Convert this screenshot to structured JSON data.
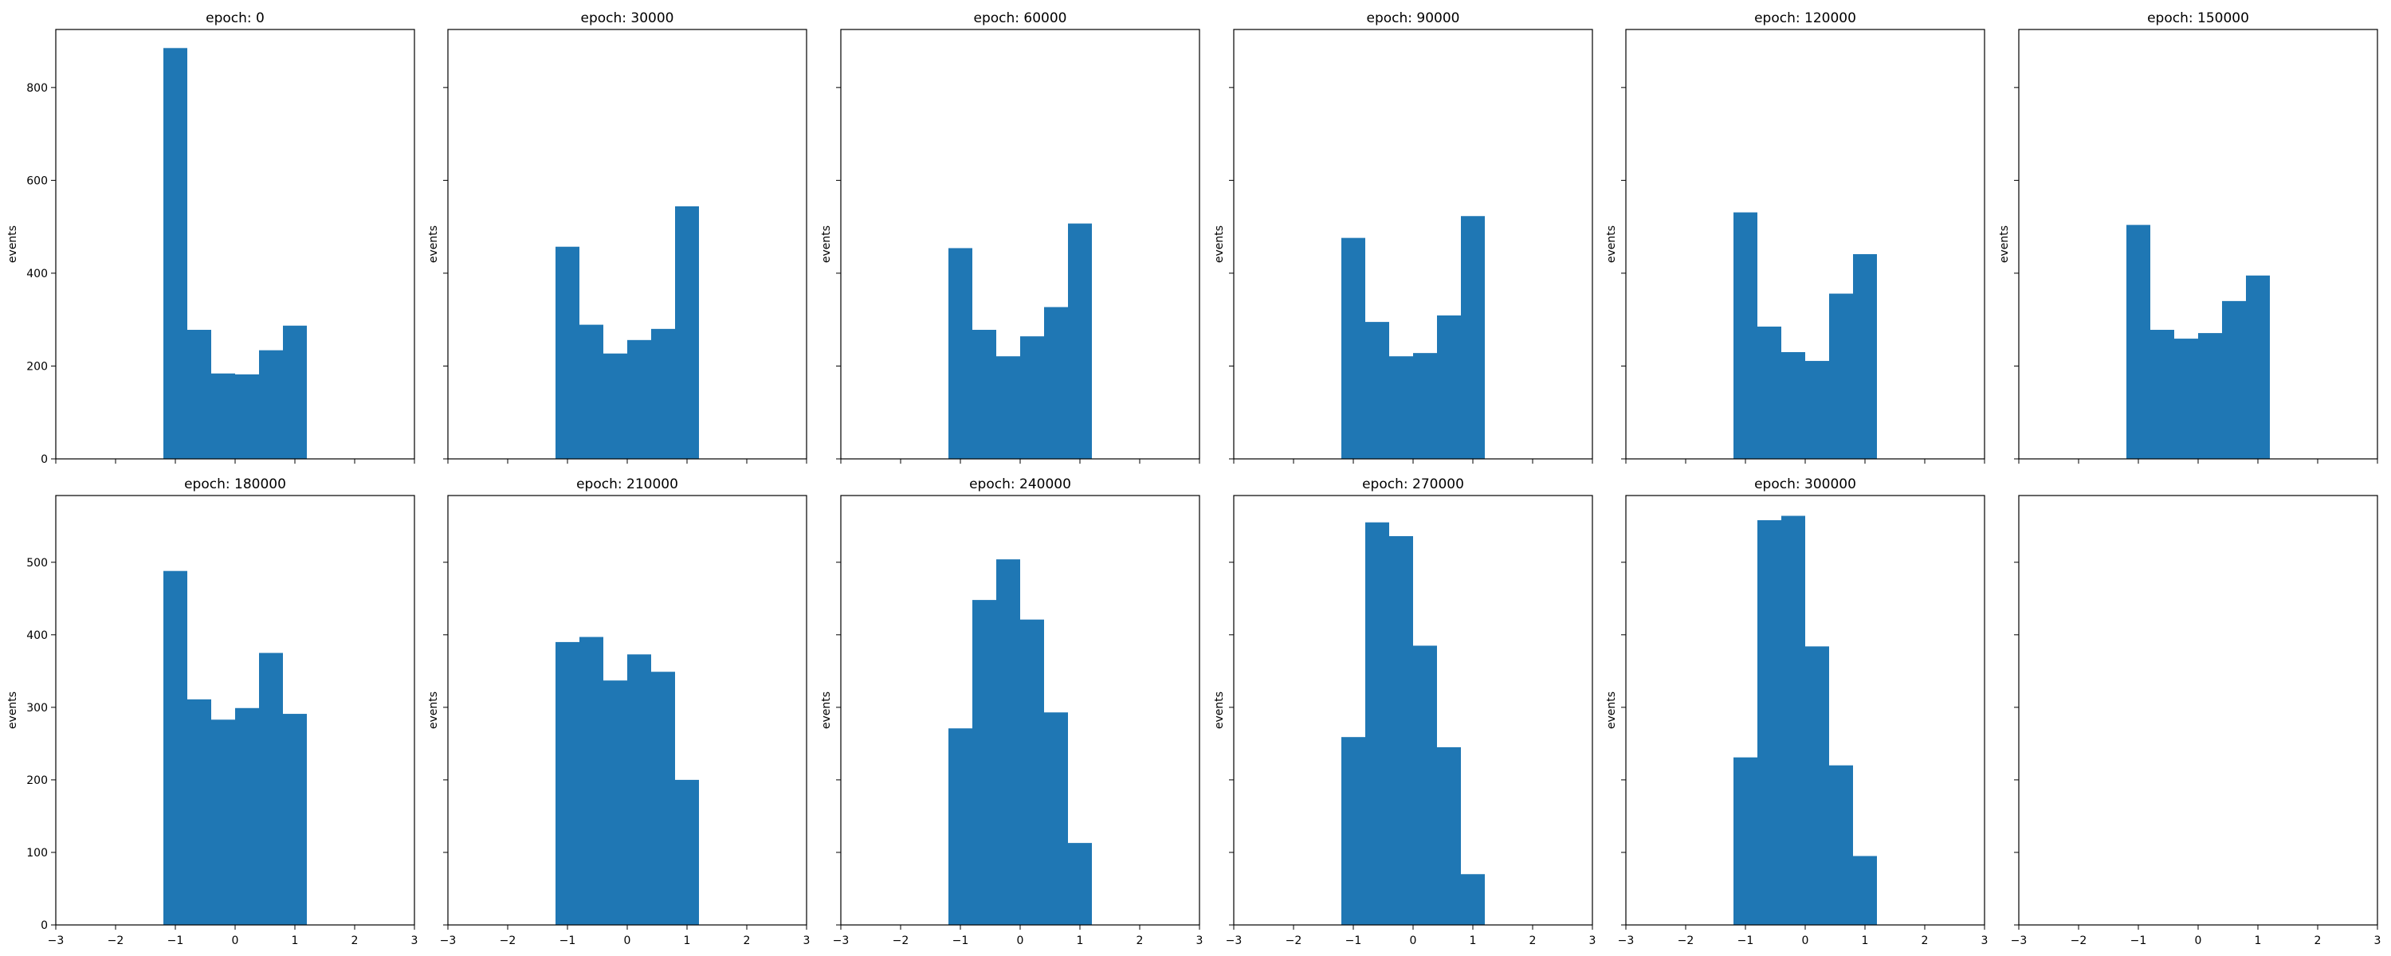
{
  "figure": {
    "background": "#ffffff",
    "bar_color": "#1f77b4"
  },
  "chart_data": [
    {
      "type": "bar",
      "title": "epoch: 0",
      "xlabel": "",
      "ylabel": "events",
      "xlim": [
        -3,
        3
      ],
      "ylim": [
        0,
        925
      ],
      "bin_edges": [
        -1.2,
        -0.8,
        -0.4,
        0.0,
        0.4,
        0.8,
        1.2
      ],
      "values": [
        885,
        278,
        184,
        182,
        234,
        287
      ],
      "xticks": [
        -3,
        -2,
        -1,
        0,
        1,
        2,
        3
      ],
      "yticks": [
        0,
        200,
        400,
        600,
        800
      ]
    },
    {
      "type": "bar",
      "title": "epoch: 30000",
      "xlabel": "",
      "ylabel": "events",
      "xlim": [
        -3,
        3
      ],
      "ylim": [
        0,
        925
      ],
      "bin_edges": [
        -1.2,
        -0.8,
        -0.4,
        0.0,
        0.4,
        0.8,
        1.2
      ],
      "values": [
        457,
        289,
        227,
        256,
        280,
        544
      ],
      "xticks": [
        -3,
        -2,
        -1,
        0,
        1,
        2,
        3
      ],
      "yticks": [
        0,
        200,
        400,
        600,
        800
      ]
    },
    {
      "type": "bar",
      "title": "epoch: 60000",
      "xlabel": "",
      "ylabel": "events",
      "xlim": [
        -3,
        3
      ],
      "ylim": [
        0,
        925
      ],
      "bin_edges": [
        -1.2,
        -0.8,
        -0.4,
        0.0,
        0.4,
        0.8,
        1.2
      ],
      "values": [
        454,
        278,
        221,
        264,
        327,
        507
      ],
      "xticks": [
        -3,
        -2,
        -1,
        0,
        1,
        2,
        3
      ],
      "yticks": [
        0,
        200,
        400,
        600,
        800
      ]
    },
    {
      "type": "bar",
      "title": "epoch: 90000",
      "xlabel": "",
      "ylabel": "events",
      "xlim": [
        -3,
        3
      ],
      "ylim": [
        0,
        925
      ],
      "bin_edges": [
        -1.2,
        -0.8,
        -0.4,
        0.0,
        0.4,
        0.8,
        1.2
      ],
      "values": [
        476,
        295,
        221,
        228,
        309,
        523
      ],
      "xticks": [
        -3,
        -2,
        -1,
        0,
        1,
        2,
        3
      ],
      "yticks": [
        0,
        200,
        400,
        600,
        800
      ]
    },
    {
      "type": "bar",
      "title": "epoch: 120000",
      "xlabel": "",
      "ylabel": "events",
      "xlim": [
        -3,
        3
      ],
      "ylim": [
        0,
        925
      ],
      "bin_edges": [
        -1.2,
        -0.8,
        -0.4,
        0.0,
        0.4,
        0.8,
        1.2
      ],
      "values": [
        531,
        285,
        230,
        211,
        356,
        441
      ],
      "xticks": [
        -3,
        -2,
        -1,
        0,
        1,
        2,
        3
      ],
      "yticks": [
        0,
        200,
        400,
        600,
        800
      ]
    },
    {
      "type": "bar",
      "title": "epoch: 150000",
      "xlabel": "",
      "ylabel": "events",
      "xlim": [
        -3,
        3
      ],
      "ylim": [
        0,
        925
      ],
      "bin_edges": [
        -1.2,
        -0.8,
        -0.4,
        0.0,
        0.4,
        0.8,
        1.2
      ],
      "values": [
        504,
        278,
        259,
        271,
        340,
        395
      ],
      "xticks": [
        -3,
        -2,
        -1,
        0,
        1,
        2,
        3
      ],
      "yticks": [
        0,
        200,
        400,
        600,
        800
      ]
    },
    {
      "type": "bar",
      "title": "epoch: 180000",
      "xlabel": "",
      "ylabel": "events",
      "xlim": [
        -3,
        3
      ],
      "ylim": [
        0,
        592
      ],
      "bin_edges": [
        -1.2,
        -0.8,
        -0.4,
        0.0,
        0.4,
        0.8,
        1.2
      ],
      "values": [
        488,
        311,
        283,
        299,
        375,
        291
      ],
      "xticks": [
        -3,
        -2,
        -1,
        0,
        1,
        2,
        3
      ],
      "yticks": [
        0,
        100,
        200,
        300,
        400,
        500
      ]
    },
    {
      "type": "bar",
      "title": "epoch: 210000",
      "xlabel": "",
      "ylabel": "events",
      "xlim": [
        -3,
        3
      ],
      "ylim": [
        0,
        592
      ],
      "bin_edges": [
        -1.2,
        -0.8,
        -0.4,
        0.0,
        0.4,
        0.8,
        1.2
      ],
      "values": [
        390,
        397,
        337,
        373,
        349,
        200
      ],
      "xticks": [
        -3,
        -2,
        -1,
        0,
        1,
        2,
        3
      ],
      "yticks": [
        0,
        100,
        200,
        300,
        400,
        500
      ]
    },
    {
      "type": "bar",
      "title": "epoch: 240000",
      "xlabel": "",
      "ylabel": "events",
      "xlim": [
        -3,
        3
      ],
      "ylim": [
        0,
        592
      ],
      "bin_edges": [
        -1.2,
        -0.8,
        -0.4,
        0.0,
        0.4,
        0.8,
        1.2
      ],
      "values": [
        271,
        448,
        504,
        421,
        293,
        113
      ],
      "xticks": [
        -3,
        -2,
        -1,
        0,
        1,
        2,
        3
      ],
      "yticks": [
        0,
        100,
        200,
        300,
        400,
        500
      ]
    },
    {
      "type": "bar",
      "title": "epoch: 270000",
      "xlabel": "",
      "ylabel": "events",
      "xlim": [
        -3,
        3
      ],
      "ylim": [
        0,
        592
      ],
      "bin_edges": [
        -1.2,
        -0.8,
        -0.4,
        0.0,
        0.4,
        0.8,
        1.2
      ],
      "values": [
        259,
        555,
        536,
        385,
        245,
        70
      ],
      "xticks": [
        -3,
        -2,
        -1,
        0,
        1,
        2,
        3
      ],
      "yticks": [
        0,
        100,
        200,
        300,
        400,
        500
      ]
    },
    {
      "type": "bar",
      "title": "epoch: 300000",
      "xlabel": "",
      "ylabel": "events",
      "xlim": [
        -3,
        3
      ],
      "ylim": [
        0,
        592
      ],
      "bin_edges": [
        -1.2,
        -0.8,
        -0.4,
        0.0,
        0.4,
        0.8,
        1.2
      ],
      "values": [
        231,
        558,
        564,
        384,
        220,
        95
      ],
      "xticks": [
        -3,
        -2,
        -1,
        0,
        1,
        2,
        3
      ],
      "yticks": [
        0,
        100,
        200,
        300,
        400,
        500
      ]
    },
    {
      "type": "bar",
      "title": "",
      "xlabel": "",
      "ylabel": "",
      "xlim": [
        -3,
        3
      ],
      "ylim": [
        0,
        592
      ],
      "bin_edges": [],
      "values": [],
      "xticks": [
        -3,
        -2,
        -1,
        0,
        1,
        2,
        3
      ],
      "yticks": [
        0,
        100,
        200,
        300,
        400,
        500
      ]
    }
  ]
}
